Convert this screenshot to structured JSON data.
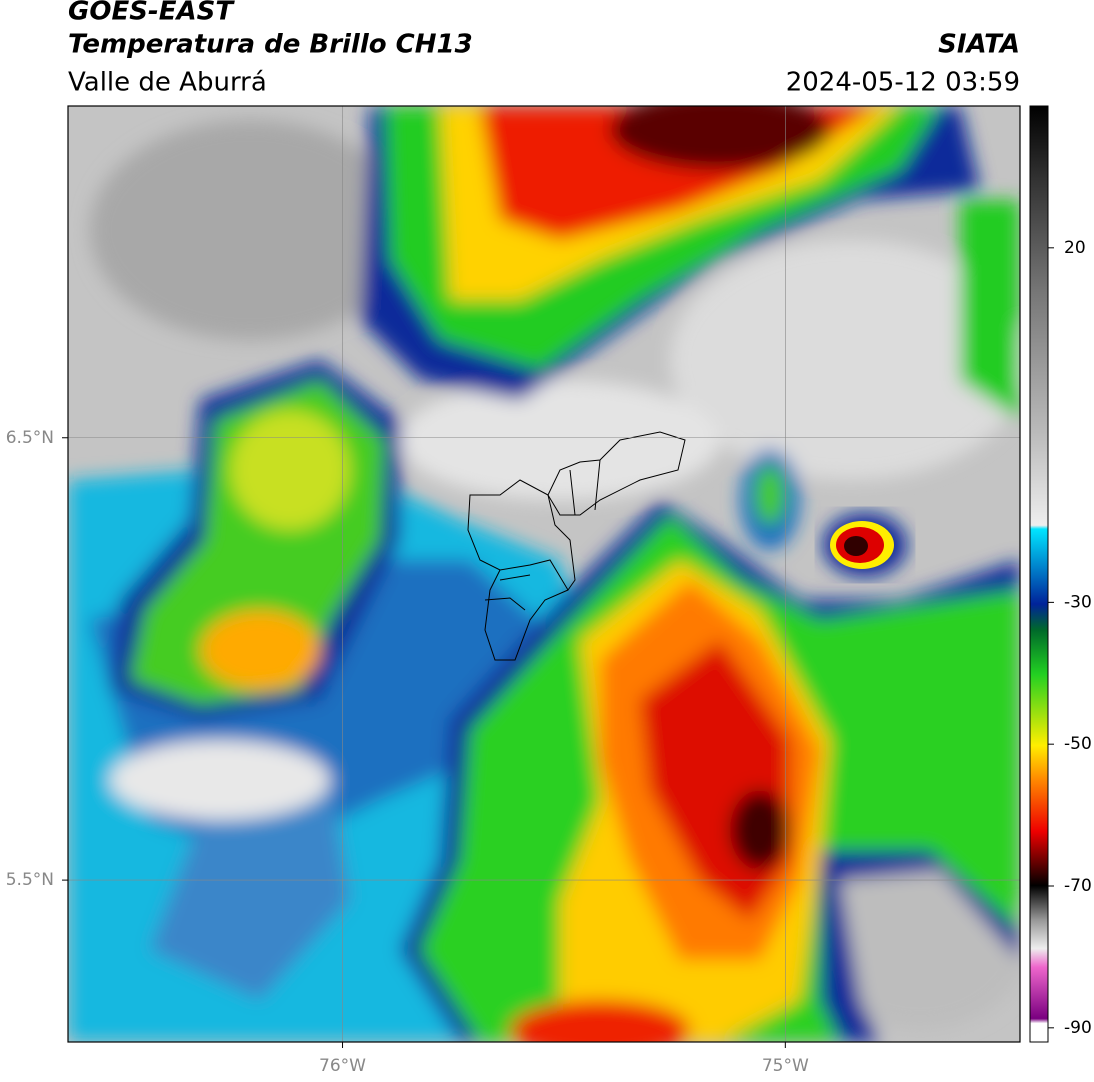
{
  "header": {
    "title": "GOES-EAST",
    "subtitle": "Temperatura de Brillo CH13",
    "region": "Valle de Aburrá",
    "org": "SIATA",
    "datetime": "2024-05-12 03:59"
  },
  "map": {
    "xlim": [
      -76.62,
      -74.47
    ],
    "ylim": [
      5.134,
      7.25
    ],
    "xticks": [
      {
        "value": -76,
        "label": "76°W"
      },
      {
        "value": -75,
        "label": "75°W"
      }
    ],
    "yticks": [
      {
        "value": 6.5,
        "label": "6.5°N"
      },
      {
        "value": 5.5,
        "label": "5.5°N"
      }
    ]
  },
  "colorbar": {
    "lim": [
      -92,
      40
    ],
    "ticks": [
      20,
      -30,
      -50,
      -70,
      -90
    ]
  }
}
